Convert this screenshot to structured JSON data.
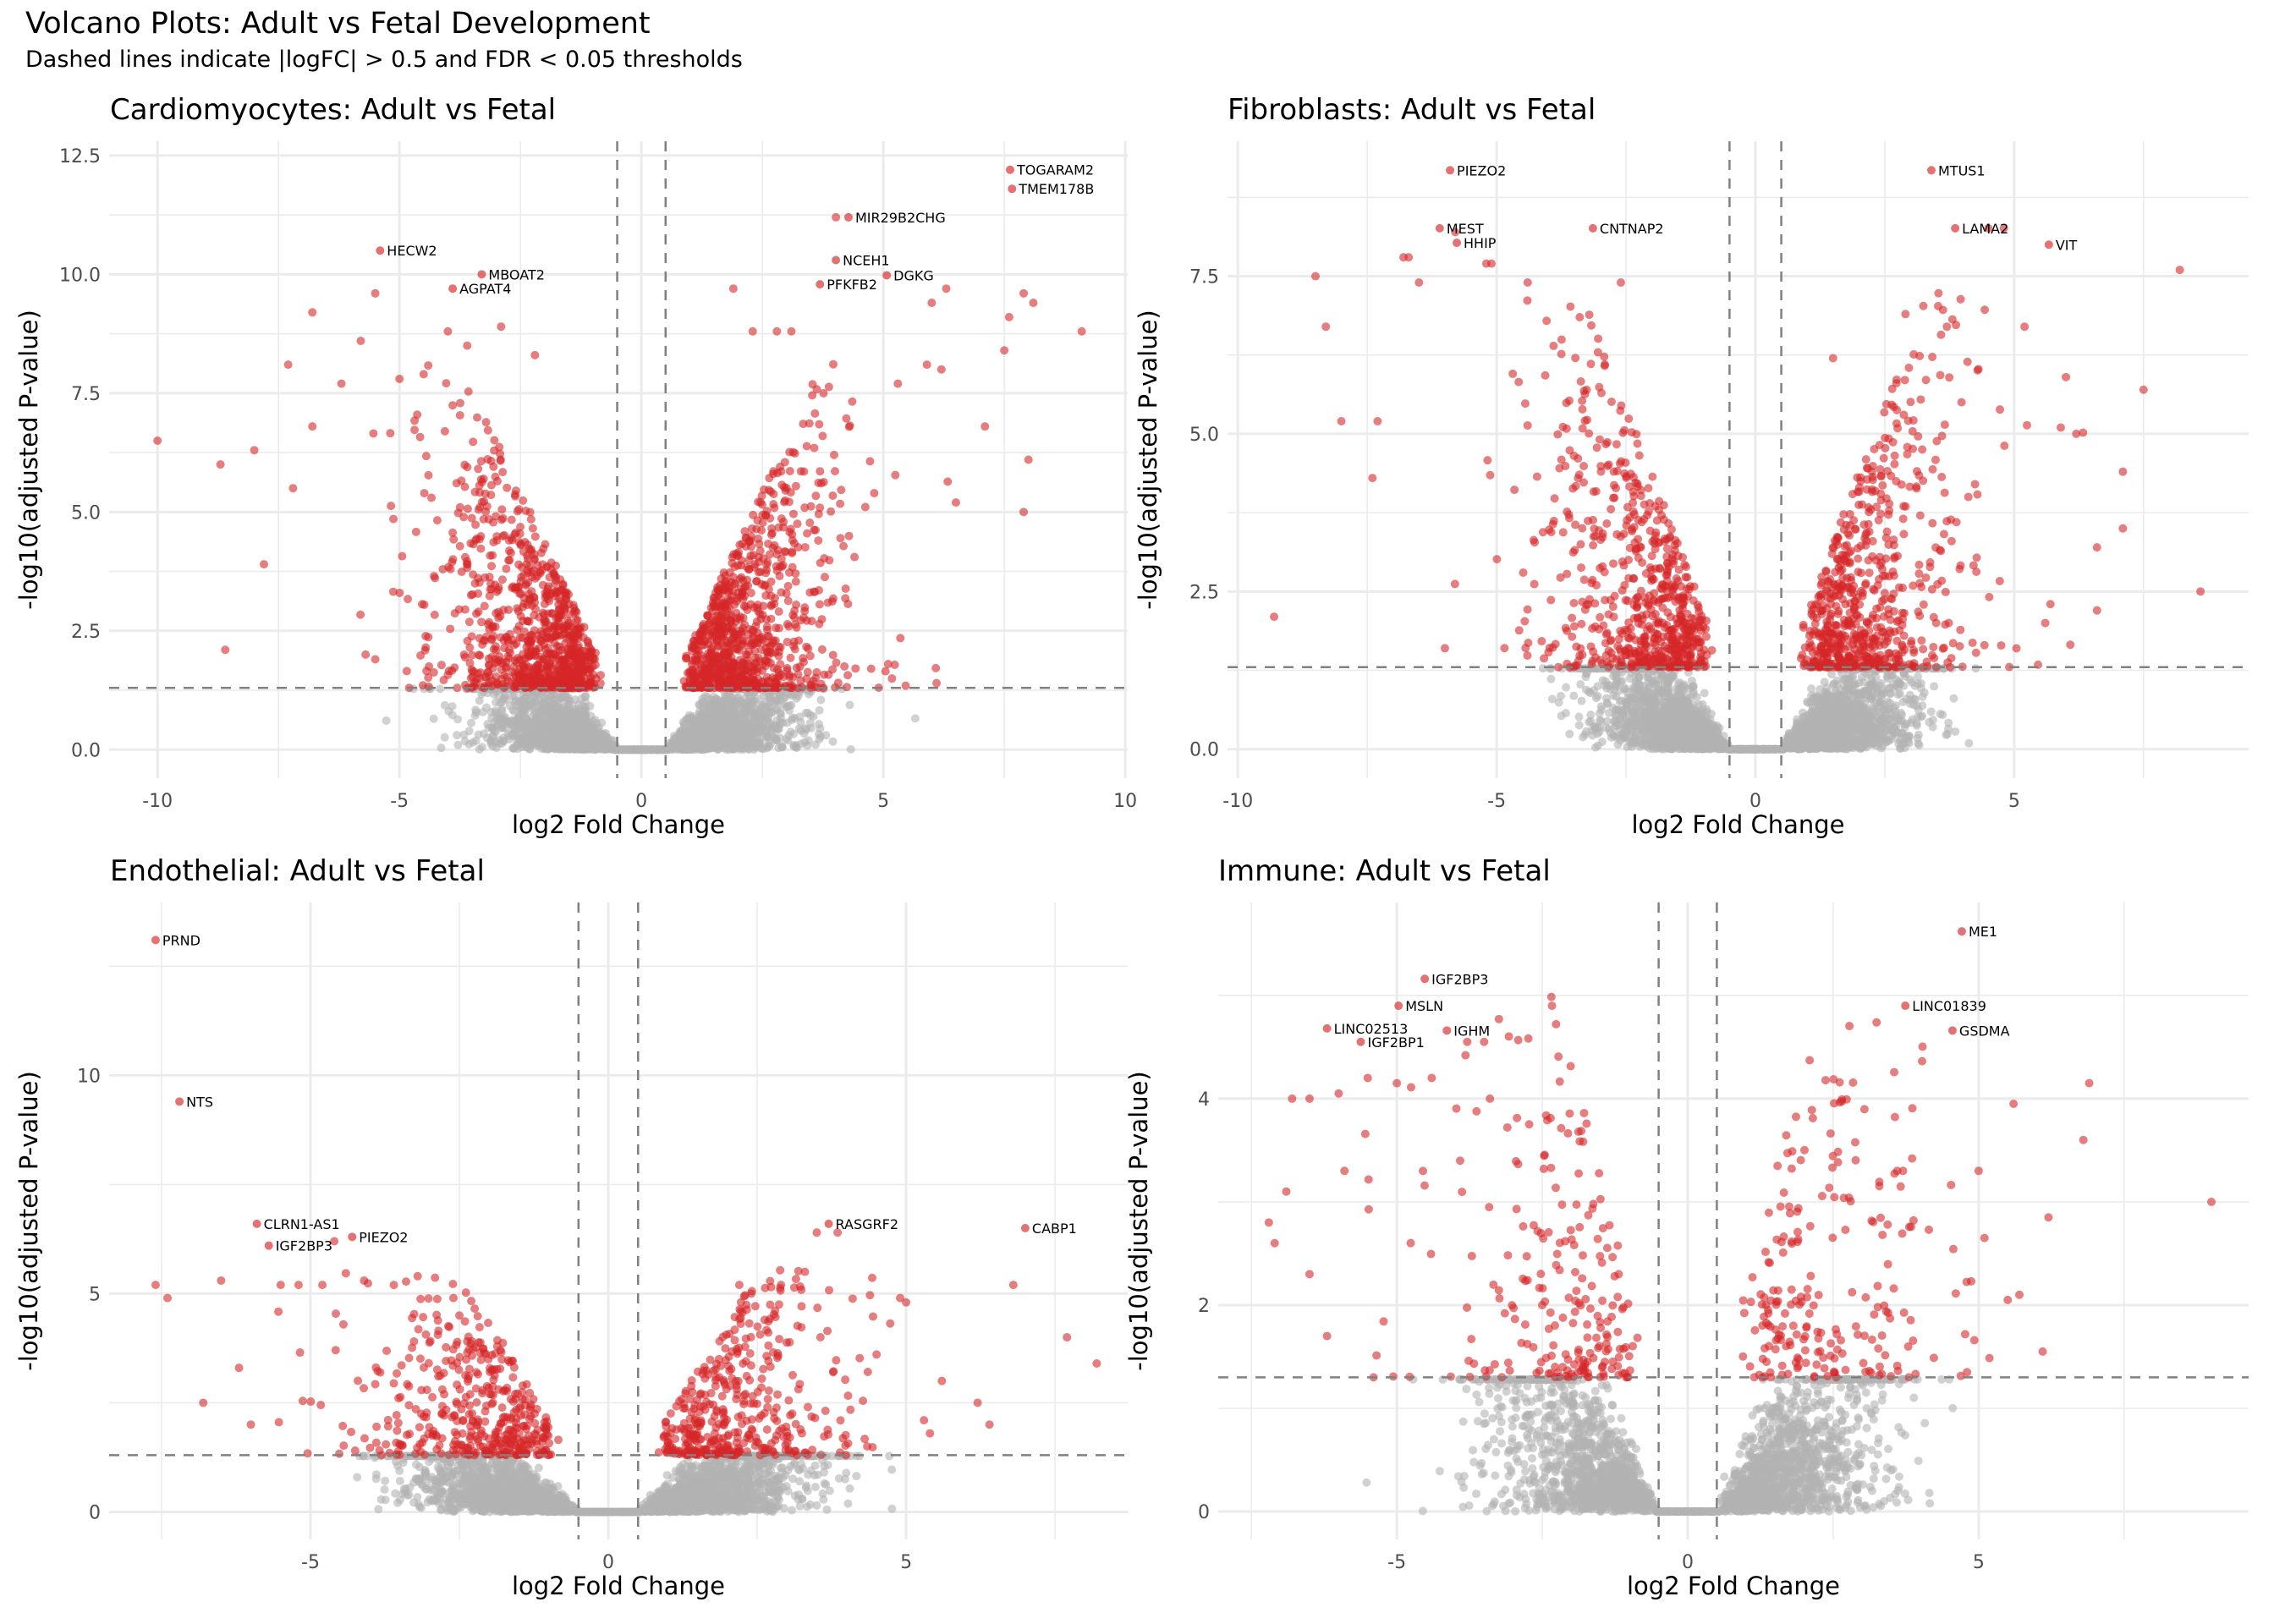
{
  "title": "Volcano Plots: Adult vs Fetal Development",
  "subtitle": "Dashed lines indicate |logFC| > 0.5 and FDR < 0.05 thresholds",
  "colors": {
    "significant": "#D62728",
    "not_significant": "#B3B3B3",
    "threshold_line": "#808080",
    "grid": "#EBEBEB"
  },
  "thresholds": {
    "logfc": 0.5,
    "neg_log10_fdr": 1.3
  },
  "chart_data": [
    {
      "type": "scatter",
      "title": "Cardiomyocytes: Adult vs Fetal",
      "xlabel": "log2 Fold Change",
      "ylabel": "-log10(adjusted P-value)",
      "xlim": [
        -11.0,
        10.05
      ],
      "ylim": [
        -0.6,
        12.8
      ],
      "xticks": [
        -10,
        -5,
        0,
        5,
        10
      ],
      "xtick_labels": [
        "-10",
        "-5",
        "0",
        "5",
        "10"
      ],
      "yticks": [
        0,
        2.5,
        5,
        7.5,
        10,
        12.5
      ],
      "ytick_labels": [
        "0.0",
        "2.5",
        "5.0",
        "7.5",
        "10.0",
        "12.5"
      ],
      "grid": true,
      "labeled_genes": [
        {
          "gene": "TOGARAM2",
          "x": 7.62,
          "y": 12.2
        },
        {
          "gene": "TMEM178B",
          "x": 7.66,
          "y": 11.8
        },
        {
          "gene": "MIR29B2CHG",
          "x": 4.28,
          "y": 11.2
        },
        {
          "gene": "HECW2",
          "x": -5.4,
          "y": 10.5
        },
        {
          "gene": "NCEH1",
          "x": 4.02,
          "y": 10.3
        },
        {
          "gene": "MBOAT2",
          "x": -3.3,
          "y": 10.0
        },
        {
          "gene": "DGKG",
          "x": 5.07,
          "y": 9.98
        },
        {
          "gene": "PFKFB2",
          "x": 3.69,
          "y": 9.79
        },
        {
          "gene": "AGPAT4",
          "x": -3.9,
          "y": 9.7
        }
      ],
      "extra_significant_points": [
        [
          4.02,
          11.2
        ],
        [
          -10.0,
          6.5
        ],
        [
          -8.6,
          2.1
        ],
        [
          -7.8,
          3.9
        ],
        [
          -8.7,
          6.0
        ],
        [
          -8.0,
          6.3
        ],
        [
          -7.3,
          8.1
        ],
        [
          -6.8,
          9.2
        ],
        [
          -5.8,
          8.6
        ],
        [
          -5.5,
          9.6
        ],
        [
          -4.0,
          8.8
        ],
        [
          -3.6,
          8.5
        ],
        [
          -2.9,
          8.9
        ],
        [
          -2.2,
          8.3
        ],
        [
          -5.0,
          7.8
        ],
        [
          -4.5,
          7.9
        ],
        [
          1.9,
          9.7
        ],
        [
          2.3,
          8.8
        ],
        [
          2.8,
          8.8
        ],
        [
          3.1,
          8.8
        ],
        [
          6.0,
          9.4
        ],
        [
          6.3,
          9.7
        ],
        [
          7.9,
          9.6
        ],
        [
          8.1,
          9.4
        ],
        [
          9.1,
          8.8
        ],
        [
          7.6,
          9.1
        ],
        [
          7.5,
          8.4
        ],
        [
          8.0,
          6.1
        ],
        [
          7.9,
          5.0
        ],
        [
          7.1,
          6.8
        ],
        [
          6.5,
          5.2
        ],
        [
          5.9,
          8.1
        ],
        [
          6.2,
          8.0
        ],
        [
          5.3,
          7.7
        ],
        [
          -7.2,
          5.5
        ],
        [
          -6.8,
          6.8
        ],
        [
          -6.2,
          7.7
        ],
        [
          -5.5,
          1.9
        ],
        [
          -5.7,
          2.0
        ],
        [
          -4.8,
          1.3
        ],
        [
          6.1,
          1.4
        ],
        [
          5.1,
          1.8
        ]
      ],
      "bulk_distribution": {
        "significant_per_side": 900,
        "not_significant_per_side": 1400,
        "spread_sig": 2.0,
        "spread_ns": 1.5,
        "ymax_sig": 7.0
      }
    },
    {
      "type": "scatter",
      "title": "Fibroblasts: Adult vs Fetal",
      "xlabel": "log2 Fold Change",
      "ylabel": "-log10(adjusted P-value)",
      "xlim": [
        -10.2,
        9.53
      ],
      "ylim": [
        -0.46,
        9.64
      ],
      "xticks": [
        -10,
        -5,
        0,
        5
      ],
      "xtick_labels": [
        "-10",
        "-5",
        "0",
        "5"
      ],
      "yticks": [
        0,
        2.5,
        5,
        7.5
      ],
      "ytick_labels": [
        "0.0",
        "2.5",
        "5.0",
        "7.5"
      ],
      "grid": true,
      "labeled_genes": [
        {
          "gene": "PIEZO2",
          "x": -5.9,
          "y": 9.18
        },
        {
          "gene": "MTUS1",
          "x": 3.4,
          "y": 9.18
        },
        {
          "gene": "MEST",
          "x": -6.1,
          "y": 8.26
        },
        {
          "gene": "CNTNAP2",
          "x": -3.14,
          "y": 8.26
        },
        {
          "gene": "LAMA2",
          "x": 3.86,
          "y": 8.26
        },
        {
          "gene": "HHIP",
          "x": -5.77,
          "y": 8.03
        },
        {
          "gene": "VIT",
          "x": 5.67,
          "y": 8.0
        }
      ],
      "extra_significant_points": [
        [
          -5.8,
          8.2
        ],
        [
          4.5,
          8.26
        ],
        [
          4.8,
          8.26
        ],
        [
          -9.3,
          2.1
        ],
        [
          -8.5,
          7.5
        ],
        [
          -8.3,
          6.7
        ],
        [
          -8.0,
          5.2
        ],
        [
          -7.3,
          5.2
        ],
        [
          -7.4,
          4.3
        ],
        [
          -6.8,
          7.8
        ],
        [
          -6.7,
          7.8
        ],
        [
          -6.5,
          7.4
        ],
        [
          -5.2,
          7.7
        ],
        [
          -5.1,
          7.7
        ],
        [
          -4.4,
          7.4
        ],
        [
          -2.6,
          7.4
        ],
        [
          8.2,
          7.6
        ],
        [
          8.6,
          2.5
        ],
        [
          7.5,
          5.7
        ],
        [
          7.1,
          4.4
        ],
        [
          7.1,
          3.5
        ],
        [
          6.6,
          3.2
        ],
        [
          6.6,
          2.2
        ],
        [
          6.0,
          5.9
        ],
        [
          5.9,
          5.1
        ],
        [
          2.9,
          6.9
        ],
        [
          3.7,
          6.7
        ],
        [
          5.2,
          6.7
        ],
        [
          1.5,
          6.2
        ],
        [
          -6.0,
          1.6
        ],
        [
          5.6,
          2.0
        ],
        [
          5.7,
          2.3
        ],
        [
          6.2,
          5.0
        ]
      ],
      "bulk_distribution": {
        "significant_per_side": 650,
        "not_significant_per_side": 1400,
        "spread_sig": 2.0,
        "spread_ns": 1.4,
        "ymax_sig": 6.0
      }
    },
    {
      "type": "scatter",
      "title": "Endothelial: Adult vs Fetal",
      "xlabel": "log2 Fold Change",
      "ylabel": "-log10(adjusted P-value)",
      "xlim": [
        -8.38,
        8.72
      ],
      "ylim": [
        -0.63,
        13.96
      ],
      "xticks": [
        -5,
        0,
        5
      ],
      "xtick_labels": [
        "-5",
        "0",
        "5"
      ],
      "yticks": [
        0,
        5,
        10
      ],
      "ytick_labels": [
        "0",
        "5",
        "10"
      ],
      "grid": true,
      "labeled_genes": [
        {
          "gene": "PRND",
          "x": -7.6,
          "y": 13.1
        },
        {
          "gene": "NTS",
          "x": -7.2,
          "y": 9.4
        },
        {
          "gene": "CLRN1-AS1",
          "x": -5.9,
          "y": 6.6
        },
        {
          "gene": "RASGRF2",
          "x": 3.7,
          "y": 6.6
        },
        {
          "gene": "CABP1",
          "x": 7.0,
          "y": 6.5
        },
        {
          "gene": "PIEZO2",
          "x": -4.3,
          "y": 6.3
        },
        {
          "gene": "IGF2BP3",
          "x": -5.7,
          "y": 6.1
        }
      ],
      "extra_significant_points": [
        [
          3.5,
          6.4
        ],
        [
          3.85,
          6.4
        ],
        [
          -4.6,
          6.2
        ],
        [
          -7.6,
          5.2
        ],
        [
          -7.4,
          4.9
        ],
        [
          -6.5,
          5.3
        ],
        [
          -6.2,
          3.3
        ],
        [
          -6.8,
          2.5
        ],
        [
          -5.5,
          5.2
        ],
        [
          -5.2,
          5.2
        ],
        [
          -4.8,
          5.2
        ],
        [
          -4.1,
          5.3
        ],
        [
          -3.6,
          5.2
        ],
        [
          -3.2,
          5.4
        ],
        [
          -2.6,
          4.9
        ],
        [
          -2.5,
          4.5
        ],
        [
          2.2,
          5.2
        ],
        [
          2.4,
          5.0
        ],
        [
          2.9,
          5.2
        ],
        [
          3.3,
          5.5
        ],
        [
          4.9,
          4.9
        ],
        [
          5.0,
          4.8
        ],
        [
          6.8,
          5.2
        ],
        [
          7.7,
          4.0
        ],
        [
          8.2,
          3.4
        ],
        [
          6.2,
          2.5
        ],
        [
          6.4,
          2.0
        ],
        [
          5.6,
          3.0
        ],
        [
          5.3,
          2.1
        ],
        [
          5.4,
          1.8
        ],
        [
          -6.0,
          2.0
        ]
      ],
      "bulk_distribution": {
        "significant_per_side": 420,
        "not_significant_per_side": 1500,
        "spread_sig": 2.0,
        "spread_ns": 1.5,
        "ymax_sig": 4.3
      }
    },
    {
      "type": "scatter",
      "title": "Immune: Adult vs Fetal",
      "xlabel": "log2 Fold Change",
      "ylabel": "-log10(adjusted P-value)",
      "xlim": [
        -8.07,
        9.64
      ],
      "ylim": [
        -0.27,
        5.9
      ],
      "xticks": [
        -5,
        0,
        5
      ],
      "xtick_labels": [
        "-5",
        "0",
        "5"
      ],
      "yticks": [
        0,
        2,
        4
      ],
      "ytick_labels": [
        "0",
        "2",
        "4"
      ],
      "grid": true,
      "labeled_genes": [
        {
          "gene": "ME1",
          "x": 4.71,
          "y": 5.62
        },
        {
          "gene": "IGF2BP3",
          "x": -4.52,
          "y": 5.16
        },
        {
          "gene": "MSLN",
          "x": -4.97,
          "y": 4.9
        },
        {
          "gene": "LINC01839",
          "x": 3.74,
          "y": 4.9
        },
        {
          "gene": "LINC02513",
          "x": -6.2,
          "y": 4.68
        },
        {
          "gene": "IGHM",
          "x": -4.14,
          "y": 4.66
        },
        {
          "gene": "GSDMA",
          "x": 4.55,
          "y": 4.66
        },
        {
          "gene": "IGF2BP1",
          "x": -5.62,
          "y": 4.55
        }
      ],
      "extra_significant_points": [
        [
          -3.79,
          4.55
        ],
        [
          -3.5,
          4.55
        ],
        [
          -7.2,
          2.8
        ],
        [
          -7.1,
          2.6
        ],
        [
          -6.9,
          3.1
        ],
        [
          -6.5,
          2.3
        ],
        [
          -6.8,
          4.0
        ],
        [
          -6.5,
          4.0
        ],
        [
          -6.0,
          4.05
        ],
        [
          -5.5,
          4.2
        ],
        [
          -5.0,
          4.15
        ],
        [
          -4.4,
          4.2
        ],
        [
          -3.4,
          4.0
        ],
        [
          -5.9,
          3.3
        ],
        [
          -6.2,
          1.7
        ],
        [
          -5.4,
          1.3
        ],
        [
          6.9,
          4.15
        ],
        [
          6.8,
          3.6
        ],
        [
          5.6,
          3.95
        ],
        [
          9.0,
          3.0
        ],
        [
          6.2,
          2.85
        ],
        [
          5.7,
          2.1
        ],
        [
          5.5,
          2.05
        ],
        [
          6.1,
          1.55
        ],
        [
          5.0,
          3.3
        ],
        [
          5.1,
          2.65
        ],
        [
          4.8,
          1.35
        ],
        [
          3.7,
          3.3
        ],
        [
          3.6,
          3.3
        ]
      ],
      "bulk_distribution": {
        "significant_per_side": 220,
        "not_significant_per_side": 1200,
        "spread_sig": 2.2,
        "spread_ns": 1.6,
        "ymax_sig": 3.7
      }
    }
  ]
}
